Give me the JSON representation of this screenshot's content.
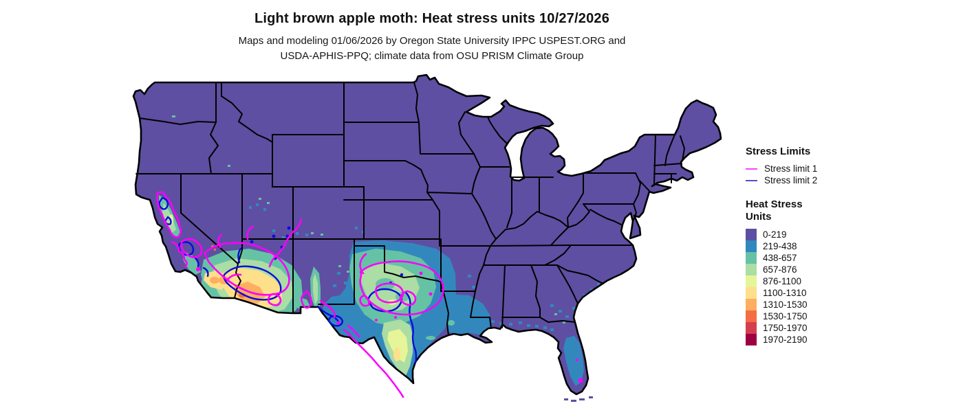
{
  "title": "Light brown apple moth: Heat stress units 10/27/2026",
  "subtitle_line1": "Maps and modeling 01/06/2026 by Oregon State University IPPC USPEST.ORG and",
  "subtitle_line2": "USDA-APHIS-PPQ; climate data from OSU PRISM Climate Group",
  "legend": {
    "stress_limits": {
      "heading": "Stress Limits",
      "items": [
        {
          "label": "Stress limit 1",
          "color": "#f546f5"
        },
        {
          "label": "Stress limit 2",
          "color": "#5050c8"
        }
      ]
    },
    "heat_stress": {
      "heading_line1": "Heat Stress",
      "heading_line2": "Units",
      "bins": [
        {
          "label": "0-219",
          "color": "#5e4fa2"
        },
        {
          "label": "219-438",
          "color": "#3288bd"
        },
        {
          "label": "438-657",
          "color": "#66c2a5"
        },
        {
          "label": "657-876",
          "color": "#abdda4"
        },
        {
          "label": "876-1100",
          "color": "#e6f598"
        },
        {
          "label": "1100-1310",
          "color": "#fee08b"
        },
        {
          "label": "1310-1530",
          "color": "#fdae61"
        },
        {
          "label": "1530-1750",
          "color": "#f46d43"
        },
        {
          "label": "1750-1970",
          "color": "#d53e4f"
        },
        {
          "label": "1970-2190",
          "color": "#9e0142"
        }
      ]
    }
  },
  "map": {
    "region": "Continental United States",
    "stress_limit_1_contour_color": "#fb00fb",
    "stress_limit_2_contour_color": "#0b0bdc",
    "base_fill_color": "#5e4fa2",
    "border_color": "#000000"
  }
}
